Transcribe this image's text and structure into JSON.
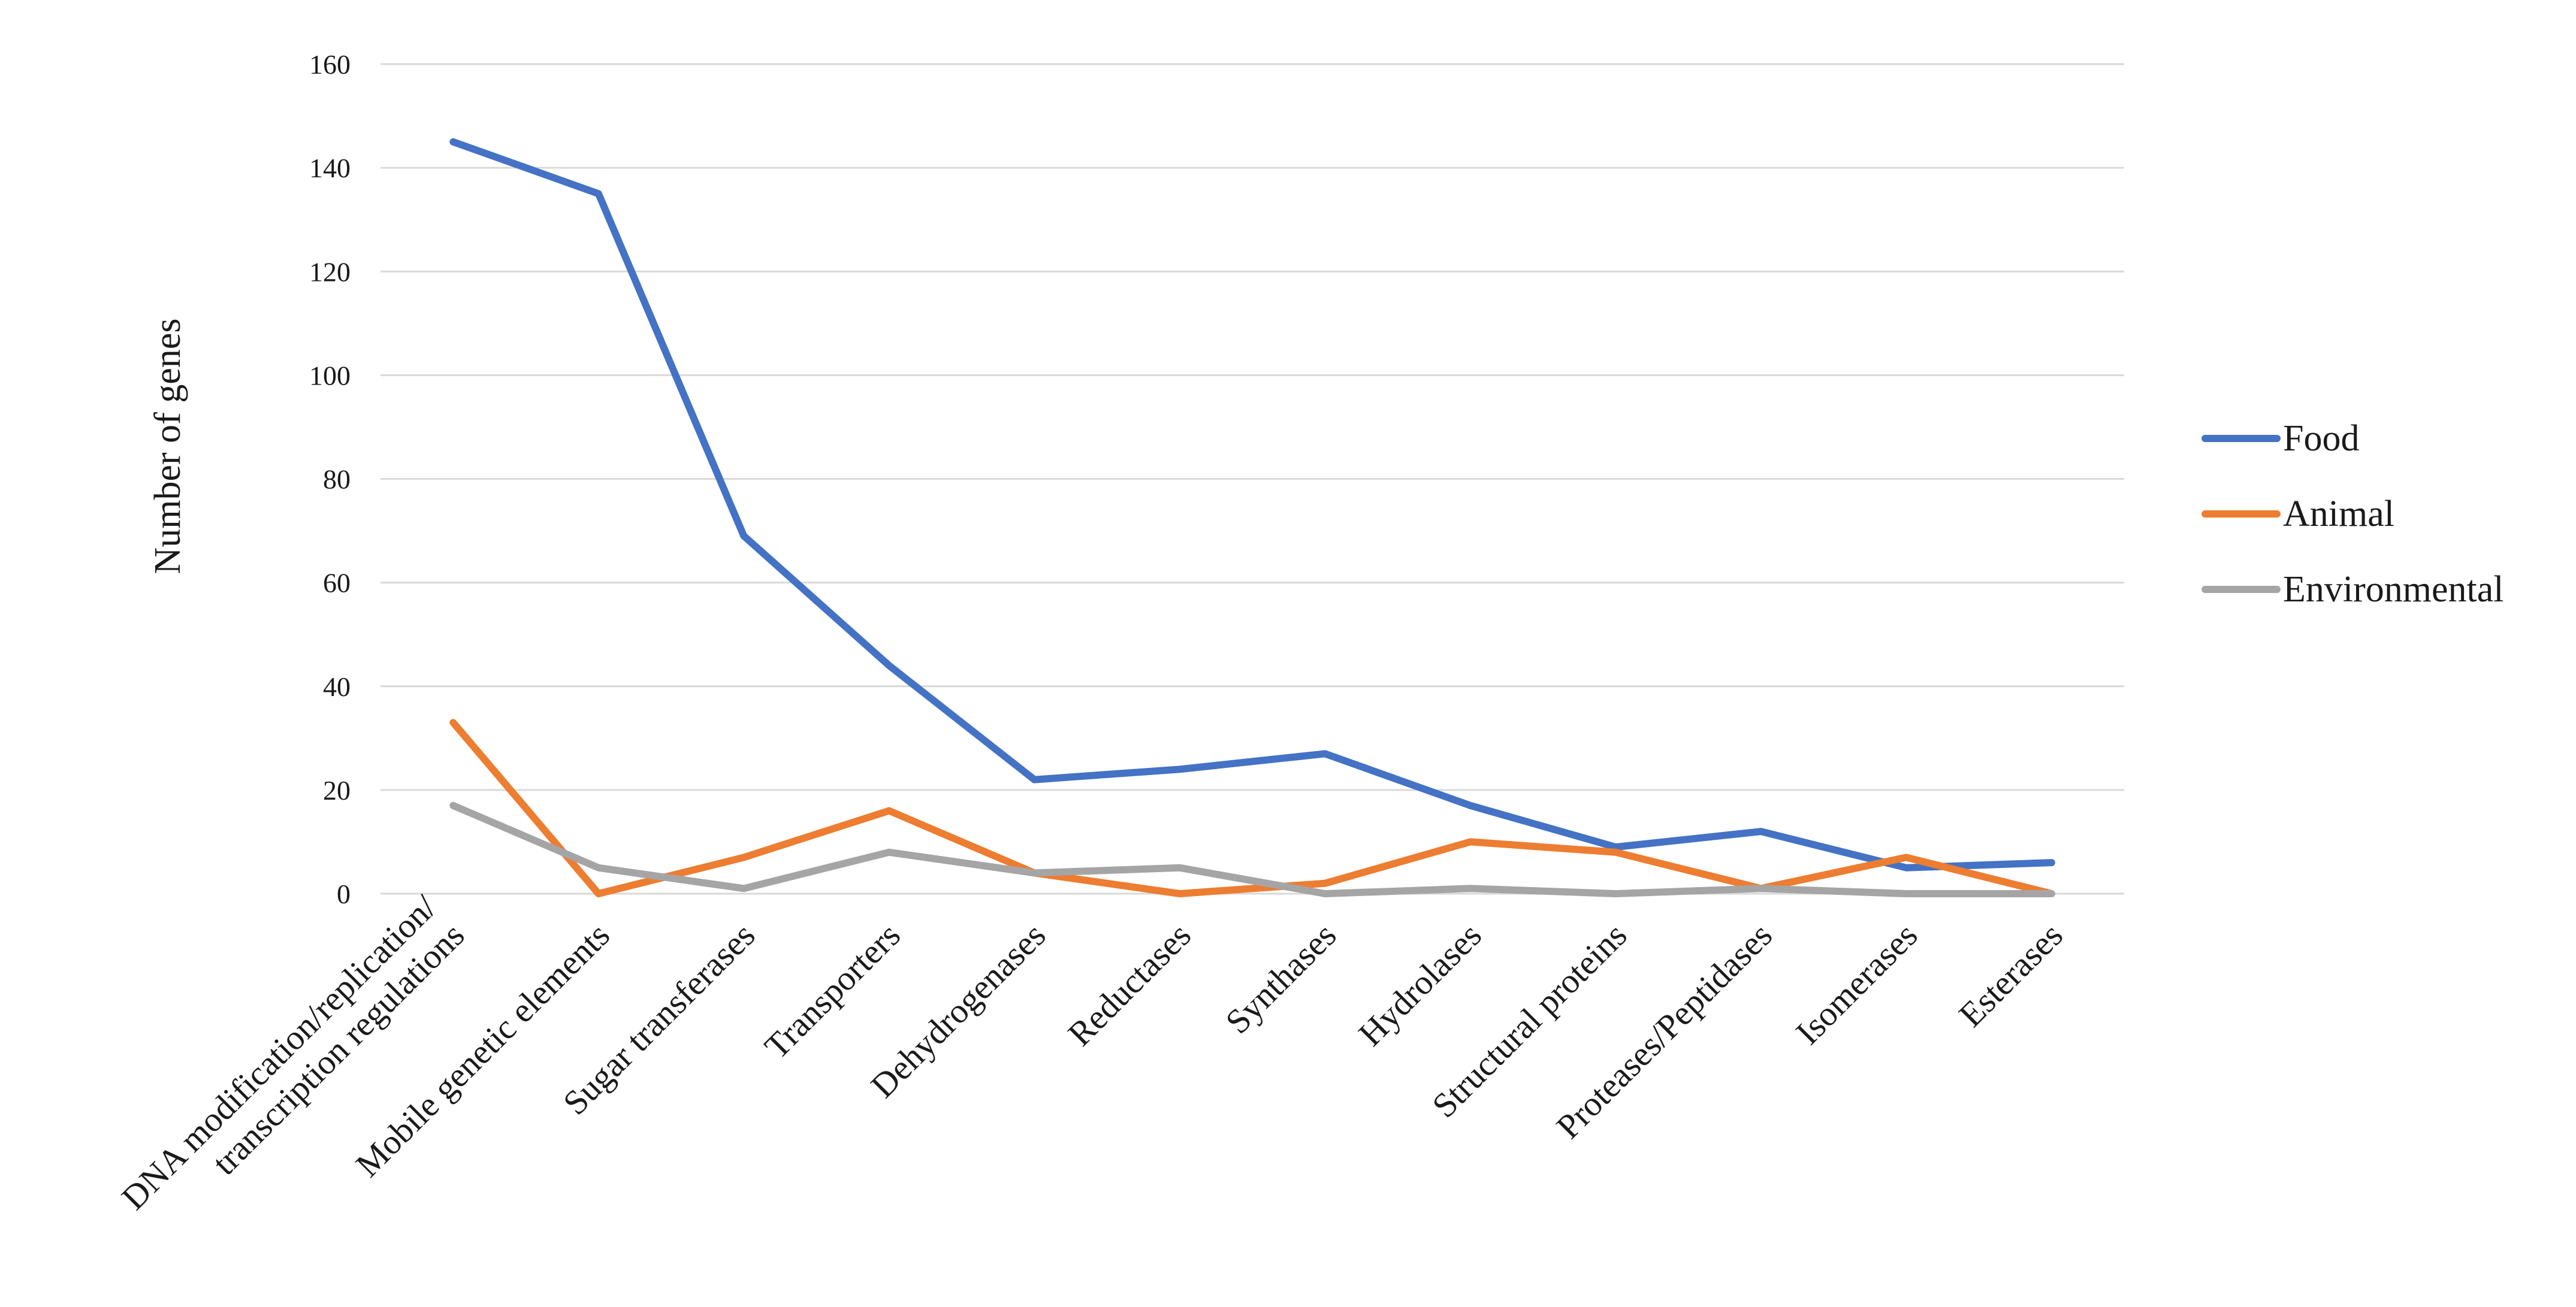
{
  "chart_data": {
    "type": "line",
    "title": "",
    "xlabel": "",
    "ylabel": "Number  of genes",
    "ylim": [
      0,
      160
    ],
    "yticks": [
      0,
      20,
      40,
      60,
      80,
      100,
      120,
      140,
      160
    ],
    "grid": true,
    "legend_position": "right",
    "categories": [
      [
        "DNA modification/replication/",
        "transcription regulations"
      ],
      [
        "Mobile genetic elements"
      ],
      [
        "Sugar transferases"
      ],
      [
        "Transporters"
      ],
      [
        "Dehydrogenases"
      ],
      [
        "Reductases"
      ],
      [
        "Synthases"
      ],
      [
        "Hydrolases"
      ],
      [
        "Structural proteins"
      ],
      [
        "Proteases/Peptidases"
      ],
      [
        "Isomerases"
      ],
      [
        "Esterases"
      ]
    ],
    "series": [
      {
        "name": "Food",
        "color": "#4472c4",
        "values": [
          145,
          135,
          69,
          44,
          22,
          24,
          27,
          17,
          9,
          12,
          5,
          6
        ]
      },
      {
        "name": "Animal",
        "color": "#ed7d31",
        "values": [
          33,
          0,
          7,
          16,
          4,
          0,
          2,
          10,
          8,
          1,
          7,
          0
        ]
      },
      {
        "name": "Environmental",
        "color": "#a5a5a5",
        "values": [
          17,
          5,
          1,
          8,
          4,
          5,
          0,
          1,
          0,
          1,
          0,
          0
        ]
      }
    ]
  }
}
